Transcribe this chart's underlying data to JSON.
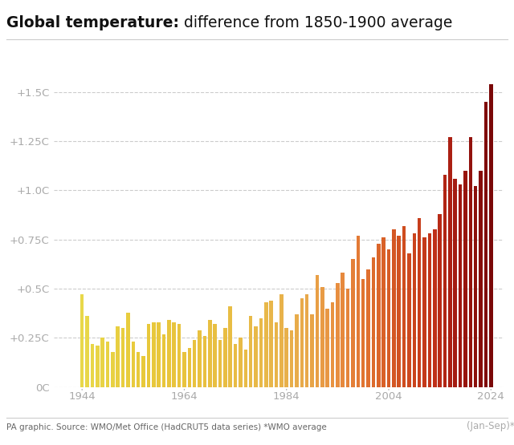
{
  "title_bold": "Global temperature:",
  "title_normal": " difference from 1850-1900 average",
  "ylabel_ticks": [
    "+1.5C",
    "+1.25C",
    "+1.0C",
    "+0.75C",
    "+0.5C",
    "+0.25C",
    "0C"
  ],
  "ytick_vals": [
    1.5,
    1.25,
    1.0,
    0.75,
    0.5,
    0.25,
    0.0
  ],
  "xtick_years": [
    1944,
    1964,
    1984,
    2004,
    2024
  ],
  "xlabel_extra": "(Jan-Sep)*",
  "source_text": "PA graphic. Source: WMO/Met Office (HadCRUT5 data series) *WMO average",
  "years": [
    1944,
    1945,
    1946,
    1947,
    1948,
    1949,
    1950,
    1951,
    1952,
    1953,
    1954,
    1955,
    1956,
    1957,
    1958,
    1959,
    1960,
    1961,
    1962,
    1963,
    1964,
    1965,
    1966,
    1967,
    1968,
    1969,
    1970,
    1971,
    1972,
    1973,
    1974,
    1975,
    1976,
    1977,
    1978,
    1979,
    1980,
    1981,
    1982,
    1983,
    1984,
    1985,
    1986,
    1987,
    1988,
    1989,
    1990,
    1991,
    1992,
    1993,
    1994,
    1995,
    1996,
    1997,
    1998,
    1999,
    2000,
    2001,
    2002,
    2003,
    2004,
    2005,
    2006,
    2007,
    2008,
    2009,
    2010,
    2011,
    2012,
    2013,
    2014,
    2015,
    2016,
    2017,
    2018,
    2019,
    2020,
    2021,
    2022,
    2023,
    2024
  ],
  "values": [
    0.47,
    0.36,
    0.22,
    0.21,
    0.25,
    0.23,
    0.18,
    0.31,
    0.3,
    0.38,
    0.23,
    0.18,
    0.16,
    0.32,
    0.33,
    0.33,
    0.27,
    0.34,
    0.33,
    0.32,
    0.18,
    0.2,
    0.24,
    0.29,
    0.26,
    0.34,
    0.32,
    0.24,
    0.3,
    0.41,
    0.22,
    0.25,
    0.19,
    0.36,
    0.31,
    0.35,
    0.43,
    0.44,
    0.33,
    0.47,
    0.3,
    0.29,
    0.37,
    0.45,
    0.47,
    0.37,
    0.57,
    0.51,
    0.4,
    0.43,
    0.53,
    0.58,
    0.5,
    0.65,
    0.77,
    0.55,
    0.6,
    0.66,
    0.73,
    0.76,
    0.7,
    0.8,
    0.77,
    0.82,
    0.68,
    0.78,
    0.86,
    0.76,
    0.78,
    0.8,
    0.88,
    1.08,
    1.27,
    1.06,
    1.03,
    1.1,
    1.27,
    1.02,
    1.1,
    1.45,
    1.54
  ],
  "background_color": "#ffffff",
  "color_stops": [
    [
      0.0,
      "#e8d84a"
    ],
    [
      0.15,
      "#e8c93a"
    ],
    [
      0.3,
      "#e8c040"
    ],
    [
      0.45,
      "#e8b84a"
    ],
    [
      0.55,
      "#e8a84a"
    ],
    [
      0.62,
      "#e89040"
    ],
    [
      0.7,
      "#e07030"
    ],
    [
      0.78,
      "#d05020"
    ],
    [
      0.86,
      "#c03018"
    ],
    [
      0.92,
      "#a01810"
    ],
    [
      1.0,
      "#7a0808"
    ]
  ]
}
